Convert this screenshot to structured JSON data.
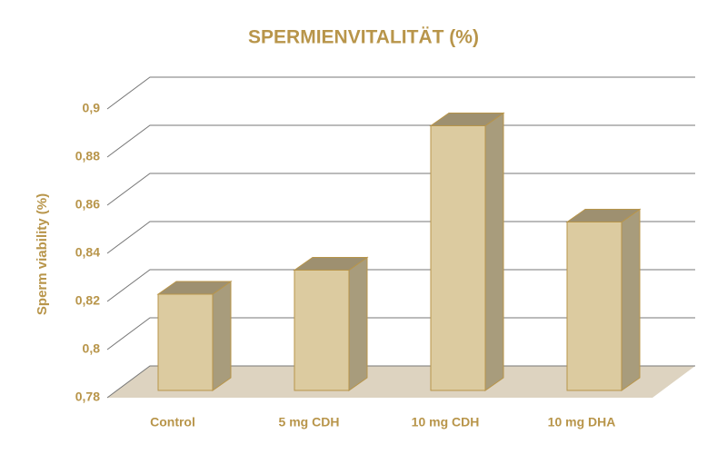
{
  "chart_data": {
    "type": "bar3d",
    "title": "SPERMIENVITALITÄT (%)",
    "y_label": "Sperm viability (%)",
    "categories": [
      "Control",
      "5 mg CDH",
      "10 mg CDH",
      "10 mg DHA"
    ],
    "values": [
      0.82,
      0.83,
      0.89,
      0.85
    ],
    "color": "#dccba0",
    "ylim": [
      0.78,
      0.9
    ],
    "yticks": [
      {
        "value": 0.78,
        "label": "0,78"
      },
      {
        "value": 0.8,
        "label": "0,8"
      },
      {
        "value": 0.82,
        "label": "0,82"
      },
      {
        "value": 0.84,
        "label": "0,84"
      },
      {
        "value": 0.86,
        "label": "0,86"
      },
      {
        "value": 0.88,
        "label": "0,88"
      },
      {
        "value": 0.9,
        "label": "0,9"
      }
    ],
    "grid": true
  }
}
